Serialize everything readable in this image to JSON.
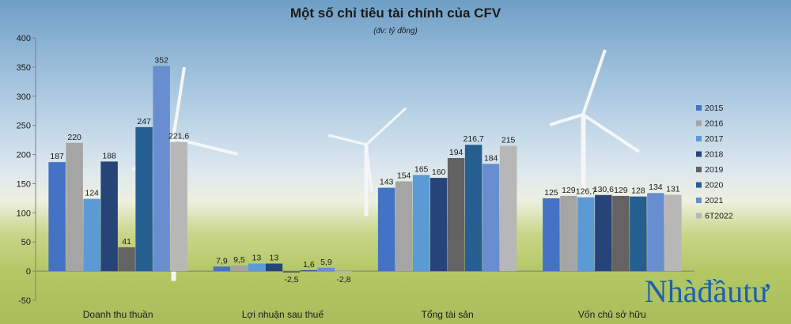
{
  "chart_data": {
    "type": "bar",
    "title": "Một số chỉ tiêu tài chính của CFV",
    "subtitle": "(đv: tỷ đồng)",
    "categories": [
      "Doanh thu thuần",
      "Lợi nhuận sau thuế",
      "Tổng tài sản",
      "Vốn chủ sở hữu"
    ],
    "series": [
      {
        "name": "2015",
        "color": "#4472c4",
        "values": [
          187,
          7.9,
          143,
          125
        ],
        "labels": [
          "187",
          "7,9",
          "143",
          "125"
        ]
      },
      {
        "name": "2016",
        "color": "#a5a5a5",
        "values": [
          220,
          9.5,
          154,
          129
        ],
        "labels": [
          "220",
          "9,5",
          "154",
          "129"
        ]
      },
      {
        "name": "2017",
        "color": "#5b9bd5",
        "values": [
          124,
          13,
          165,
          126.7
        ],
        "labels": [
          "124",
          "13",
          "165",
          "126,7"
        ]
      },
      {
        "name": "2018",
        "color": "#264478",
        "values": [
          188,
          13,
          160,
          130.6
        ],
        "labels": [
          "188",
          "13",
          "160",
          "130,6"
        ]
      },
      {
        "name": "2019",
        "color": "#636363",
        "values": [
          41,
          -2.5,
          194,
          129
        ],
        "labels": [
          "41",
          "-2,5",
          "194",
          "129"
        ]
      },
      {
        "name": "2020",
        "color": "#255e91",
        "values": [
          247,
          1.6,
          216.7,
          128
        ],
        "labels": [
          "247",
          "1,6",
          "216,7",
          "128"
        ]
      },
      {
        "name": "2021",
        "color": "#698ed0",
        "values": [
          352,
          5.9,
          184,
          134
        ],
        "labels": [
          "352",
          "5,9",
          "184",
          "134"
        ]
      },
      {
        "name": "6T2022",
        "color": "#b7b7b7",
        "values": [
          221.6,
          -2.8,
          215,
          131
        ],
        "labels": [
          "221,6",
          "-2,8",
          "215",
          "131"
        ]
      }
    ],
    "ylim": [
      -50,
      400
    ],
    "yticks": [
      -50,
      0,
      50,
      100,
      150,
      200,
      250,
      300,
      350,
      400
    ],
    "legend_position": "right",
    "grid": false
  },
  "watermark": {
    "text": "Nhàđầutư"
  }
}
